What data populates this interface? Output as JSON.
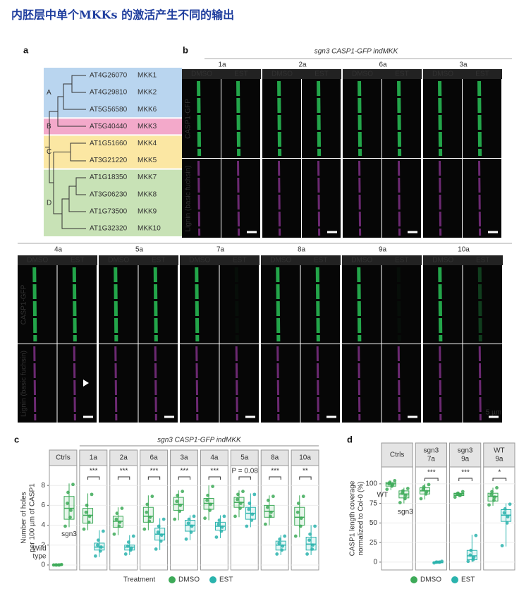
{
  "title": "内胚层中单个MKKs 的激活产生不同的输出",
  "panel_a": {
    "label": "a",
    "groups": [
      {
        "name": "A",
        "color": "#b9d5ef",
        "genes": [
          {
            "id": "AT4G26070",
            "name": "MKK1"
          },
          {
            "id": "AT4G29810",
            "name": "MKK2"
          },
          {
            "id": "AT5G56580",
            "name": "MKK6"
          }
        ]
      },
      {
        "name": "B",
        "color": "#f3a9ca",
        "genes": [
          {
            "id": "AT5G40440",
            "name": "MKK3"
          }
        ]
      },
      {
        "name": "C",
        "color": "#fbe7a3",
        "genes": [
          {
            "id": "AT1G51660",
            "name": "MKK4"
          },
          {
            "id": "AT3G21220",
            "name": "MKK5"
          }
        ]
      },
      {
        "name": "D",
        "color": "#c8e2b6",
        "genes": [
          {
            "id": "AT1G18350",
            "name": "MKK7"
          },
          {
            "id": "AT3G06230",
            "name": "MKK8"
          },
          {
            "id": "AT1G73500",
            "name": "MKK9"
          },
          {
            "id": "AT1G32320",
            "name": "MKK10"
          }
        ]
      }
    ]
  },
  "panel_b": {
    "label": "b",
    "header": "sgn3 CASP1-GFP indMKK",
    "treatments": [
      "DMSO",
      "EST"
    ],
    "channels": [
      "CASP1-GFP",
      "Lignin (basic fuchsin)"
    ],
    "rows": [
      [
        "1a",
        "2a",
        "6a",
        "3a"
      ],
      [
        "4a",
        "5a",
        "7a",
        "8a",
        "9a",
        "10a"
      ]
    ],
    "scale_bar": "5 µm"
  },
  "chart_data": [
    {
      "type": "box",
      "panel": "c",
      "header": "sgn3 CASP1-GFP indMKK",
      "ylabel": [
        "Number of holes",
        "per 100 µm of CASP1"
      ],
      "ylim": [
        -0.5,
        10
      ],
      "yticks": [
        0,
        2,
        4,
        6,
        8
      ],
      "grid": true,
      "legend_title": "Treatment",
      "series": [
        {
          "name": "DMSO",
          "color": "#3daa58"
        },
        {
          "name": "EST",
          "color": "#2ab3ad"
        }
      ],
      "facets": [
        {
          "label": "Ctrls",
          "boxes": [
            {
              "treatment": "DMSO",
              "label": [
                "Wild",
                "type"
              ],
              "stats": [
                0,
                0,
                0,
                0.05,
                0.1
              ],
              "points": [
                0,
                0,
                0,
                0,
                0,
                0.05
              ]
            },
            {
              "treatment": "DMSO",
              "label": [
                "sgn3"
              ],
              "stats": [
                3.8,
                4.6,
                5.7,
                6.9,
                8.2
              ],
              "points": [
                3.9,
                4.8,
                5.5,
                6.2,
                7.3,
                8.1
              ]
            }
          ]
        },
        {
          "label": "1a",
          "significance": "***",
          "boxes": [
            {
              "treatment": "DMSO",
              "stats": [
                3.5,
                4.2,
                5.0,
                5.7,
                7.2
              ],
              "points": [
                3.6,
                4.3,
                4.9,
                5.3,
                6.0,
                7.1
              ]
            },
            {
              "treatment": "EST",
              "stats": [
                0.8,
                1.5,
                1.8,
                2.2,
                3.5
              ],
              "points": [
                0.9,
                1.4,
                1.8,
                2.0,
                2.5,
                3.4
              ]
            }
          ]
        },
        {
          "label": "2a",
          "significance": "***",
          "boxes": [
            {
              "treatment": "DMSO",
              "stats": [
                3,
                3.8,
                4.4,
                4.9,
                5.8
              ],
              "points": [
                3.1,
                3.9,
                4.3,
                4.6,
                5.2,
                5.7
              ]
            },
            {
              "treatment": "EST",
              "stats": [
                1,
                1.5,
                1.8,
                2,
                3
              ],
              "points": [
                1.1,
                1.5,
                1.7,
                1.9,
                2.3,
                2.9
              ]
            }
          ]
        },
        {
          "label": "6a",
          "significance": "***",
          "boxes": [
            {
              "treatment": "DMSO",
              "stats": [
                3.5,
                4.3,
                4.9,
                5.8,
                7
              ],
              "points": [
                3.6,
                4.4,
                4.8,
                5.3,
                6.1,
                6.9
              ]
            },
            {
              "treatment": "EST",
              "stats": [
                1.5,
                2.5,
                3.1,
                3.7,
                4.7
              ],
              "points": [
                1.6,
                2.4,
                3.0,
                3.3,
                3.9,
                4.6
              ]
            }
          ]
        },
        {
          "label": "3a",
          "significance": "***",
          "boxes": [
            {
              "treatment": "DMSO",
              "stats": [
                4.5,
                5.5,
                6.1,
                6.8,
                7.5
              ],
              "points": [
                4.6,
                5.4,
                6.0,
                6.4,
                7.0,
                7.4
              ]
            },
            {
              "treatment": "EST",
              "stats": [
                2.5,
                3.4,
                4,
                4.5,
                5
              ],
              "points": [
                2.6,
                3.3,
                3.9,
                4.2,
                4.6,
                4.9
              ]
            }
          ]
        },
        {
          "label": "4a",
          "significance": "***",
          "boxes": [
            {
              "treatment": "DMSO",
              "stats": [
                4.5,
                5.6,
                6.2,
                6.7,
                8
              ],
              "points": [
                4.7,
                5.5,
                6.1,
                6.5,
                7.0,
                7.9
              ]
            },
            {
              "treatment": "EST",
              "stats": [
                2.7,
                3.5,
                3.9,
                4.3,
                5
              ],
              "points": [
                2.8,
                3.4,
                3.8,
                4.1,
                4.5,
                4.9
              ]
            }
          ]
        },
        {
          "label": "5a",
          "significance": "P = 0.08",
          "boxes": [
            {
              "treatment": "DMSO",
              "stats": [
                4.8,
                5.8,
                6.3,
                6.8,
                7.5
              ],
              "points": [
                4.9,
                5.7,
                6.2,
                6.6,
                7.1,
                7.4
              ]
            },
            {
              "treatment": "EST",
              "stats": [
                3.8,
                4.6,
                5.2,
                5.8,
                7.2
              ],
              "points": [
                3.9,
                4.5,
                5.1,
                5.6,
                6.2,
                7.1
              ]
            }
          ]
        },
        {
          "label": "8a",
          "significance": "***",
          "boxes": [
            {
              "treatment": "DMSO",
              "stats": [
                4,
                4.8,
                5.4,
                6,
                7
              ],
              "points": [
                4.1,
                4.9,
                5.3,
                5.8,
                6.5,
                6.9
              ]
            },
            {
              "treatment": "EST",
              "stats": [
                1,
                1.5,
                2,
                2.4,
                3
              ],
              "points": [
                1.1,
                1.5,
                1.9,
                2.2,
                2.6,
                2.9
              ]
            }
          ]
        },
        {
          "label": "10a",
          "significance": "**",
          "boxes": [
            {
              "treatment": "DMSO",
              "stats": [
                2.8,
                4,
                4.8,
                5.8,
                7
              ],
              "points": [
                2.9,
                3.9,
                4.7,
                5.3,
                6.2,
                6.9
              ]
            },
            {
              "treatment": "EST",
              "stats": [
                1,
                1.5,
                2.1,
                2.8,
                4
              ],
              "points": [
                1.1,
                1.6,
                2.0,
                2.5,
                3.1,
                3.9
              ]
            }
          ]
        }
      ]
    },
    {
      "type": "box",
      "panel": "d",
      "ylabel": [
        "CASP1 length coverage",
        "normalized to Col-0 (%)"
      ],
      "ylim": [
        -10,
        121.5
      ],
      "yticks": [
        0,
        25,
        50,
        75,
        100
      ],
      "grid": true,
      "series": [
        {
          "name": "DMSO",
          "color": "#3daa58"
        },
        {
          "name": "EST",
          "color": "#2ab3ad"
        }
      ],
      "facets": [
        {
          "label": [
            "Ctrls"
          ],
          "boxes": [
            {
              "treatment": "DMSO",
              "label": [
                "WT"
              ],
              "stats": [
                92,
                97,
                100,
                102,
                104
              ],
              "points": [
                93,
                97,
                99,
                100,
                102,
                104
              ]
            },
            {
              "treatment": "DMSO",
              "label": [
                "sgn3"
              ],
              "stats": [
                75,
                82,
                87,
                91,
                95
              ],
              "points": [
                76,
                81,
                85,
                88,
                91,
                94
              ]
            }
          ]
        },
        {
          "label": [
            "sgn3",
            "7a"
          ],
          "significance": "***",
          "boxes": [
            {
              "treatment": "DMSO",
              "stats": [
                80,
                87,
                91,
                95,
                100
              ],
              "points": [
                81,
                87,
                90,
                93,
                96,
                99
              ]
            },
            {
              "treatment": "EST",
              "stats": [
                -1,
                0,
                0,
                0,
                1
              ],
              "points": [
                -1,
                0,
                0,
                0,
                0,
                1
              ]
            }
          ]
        },
        {
          "label": [
            "sgn3",
            "9a"
          ],
          "significance": "***",
          "boxes": [
            {
              "treatment": "DMSO",
              "stats": [
                83,
                85,
                87,
                88,
                90
              ],
              "points": [
                83,
                85,
                86,
                87,
                88,
                90
              ]
            },
            {
              "treatment": "EST",
              "stats": [
                0,
                3,
                8,
                15,
                35
              ],
              "points": [
                1,
                3,
                6,
                9,
                15,
                34
              ]
            }
          ]
        },
        {
          "label": [
            "WT",
            "9a"
          ],
          "significance": "*",
          "boxes": [
            {
              "treatment": "DMSO",
              "stats": [
                72,
                78,
                84,
                88,
                95
              ],
              "points": [
                73,
                79,
                83,
                86,
                90,
                95
              ]
            },
            {
              "treatment": "EST",
              "stats": [
                20,
                52,
                60,
                67,
                75
              ],
              "points": [
                21,
                50,
                58,
                63,
                68,
                74
              ]
            }
          ]
        }
      ]
    }
  ]
}
